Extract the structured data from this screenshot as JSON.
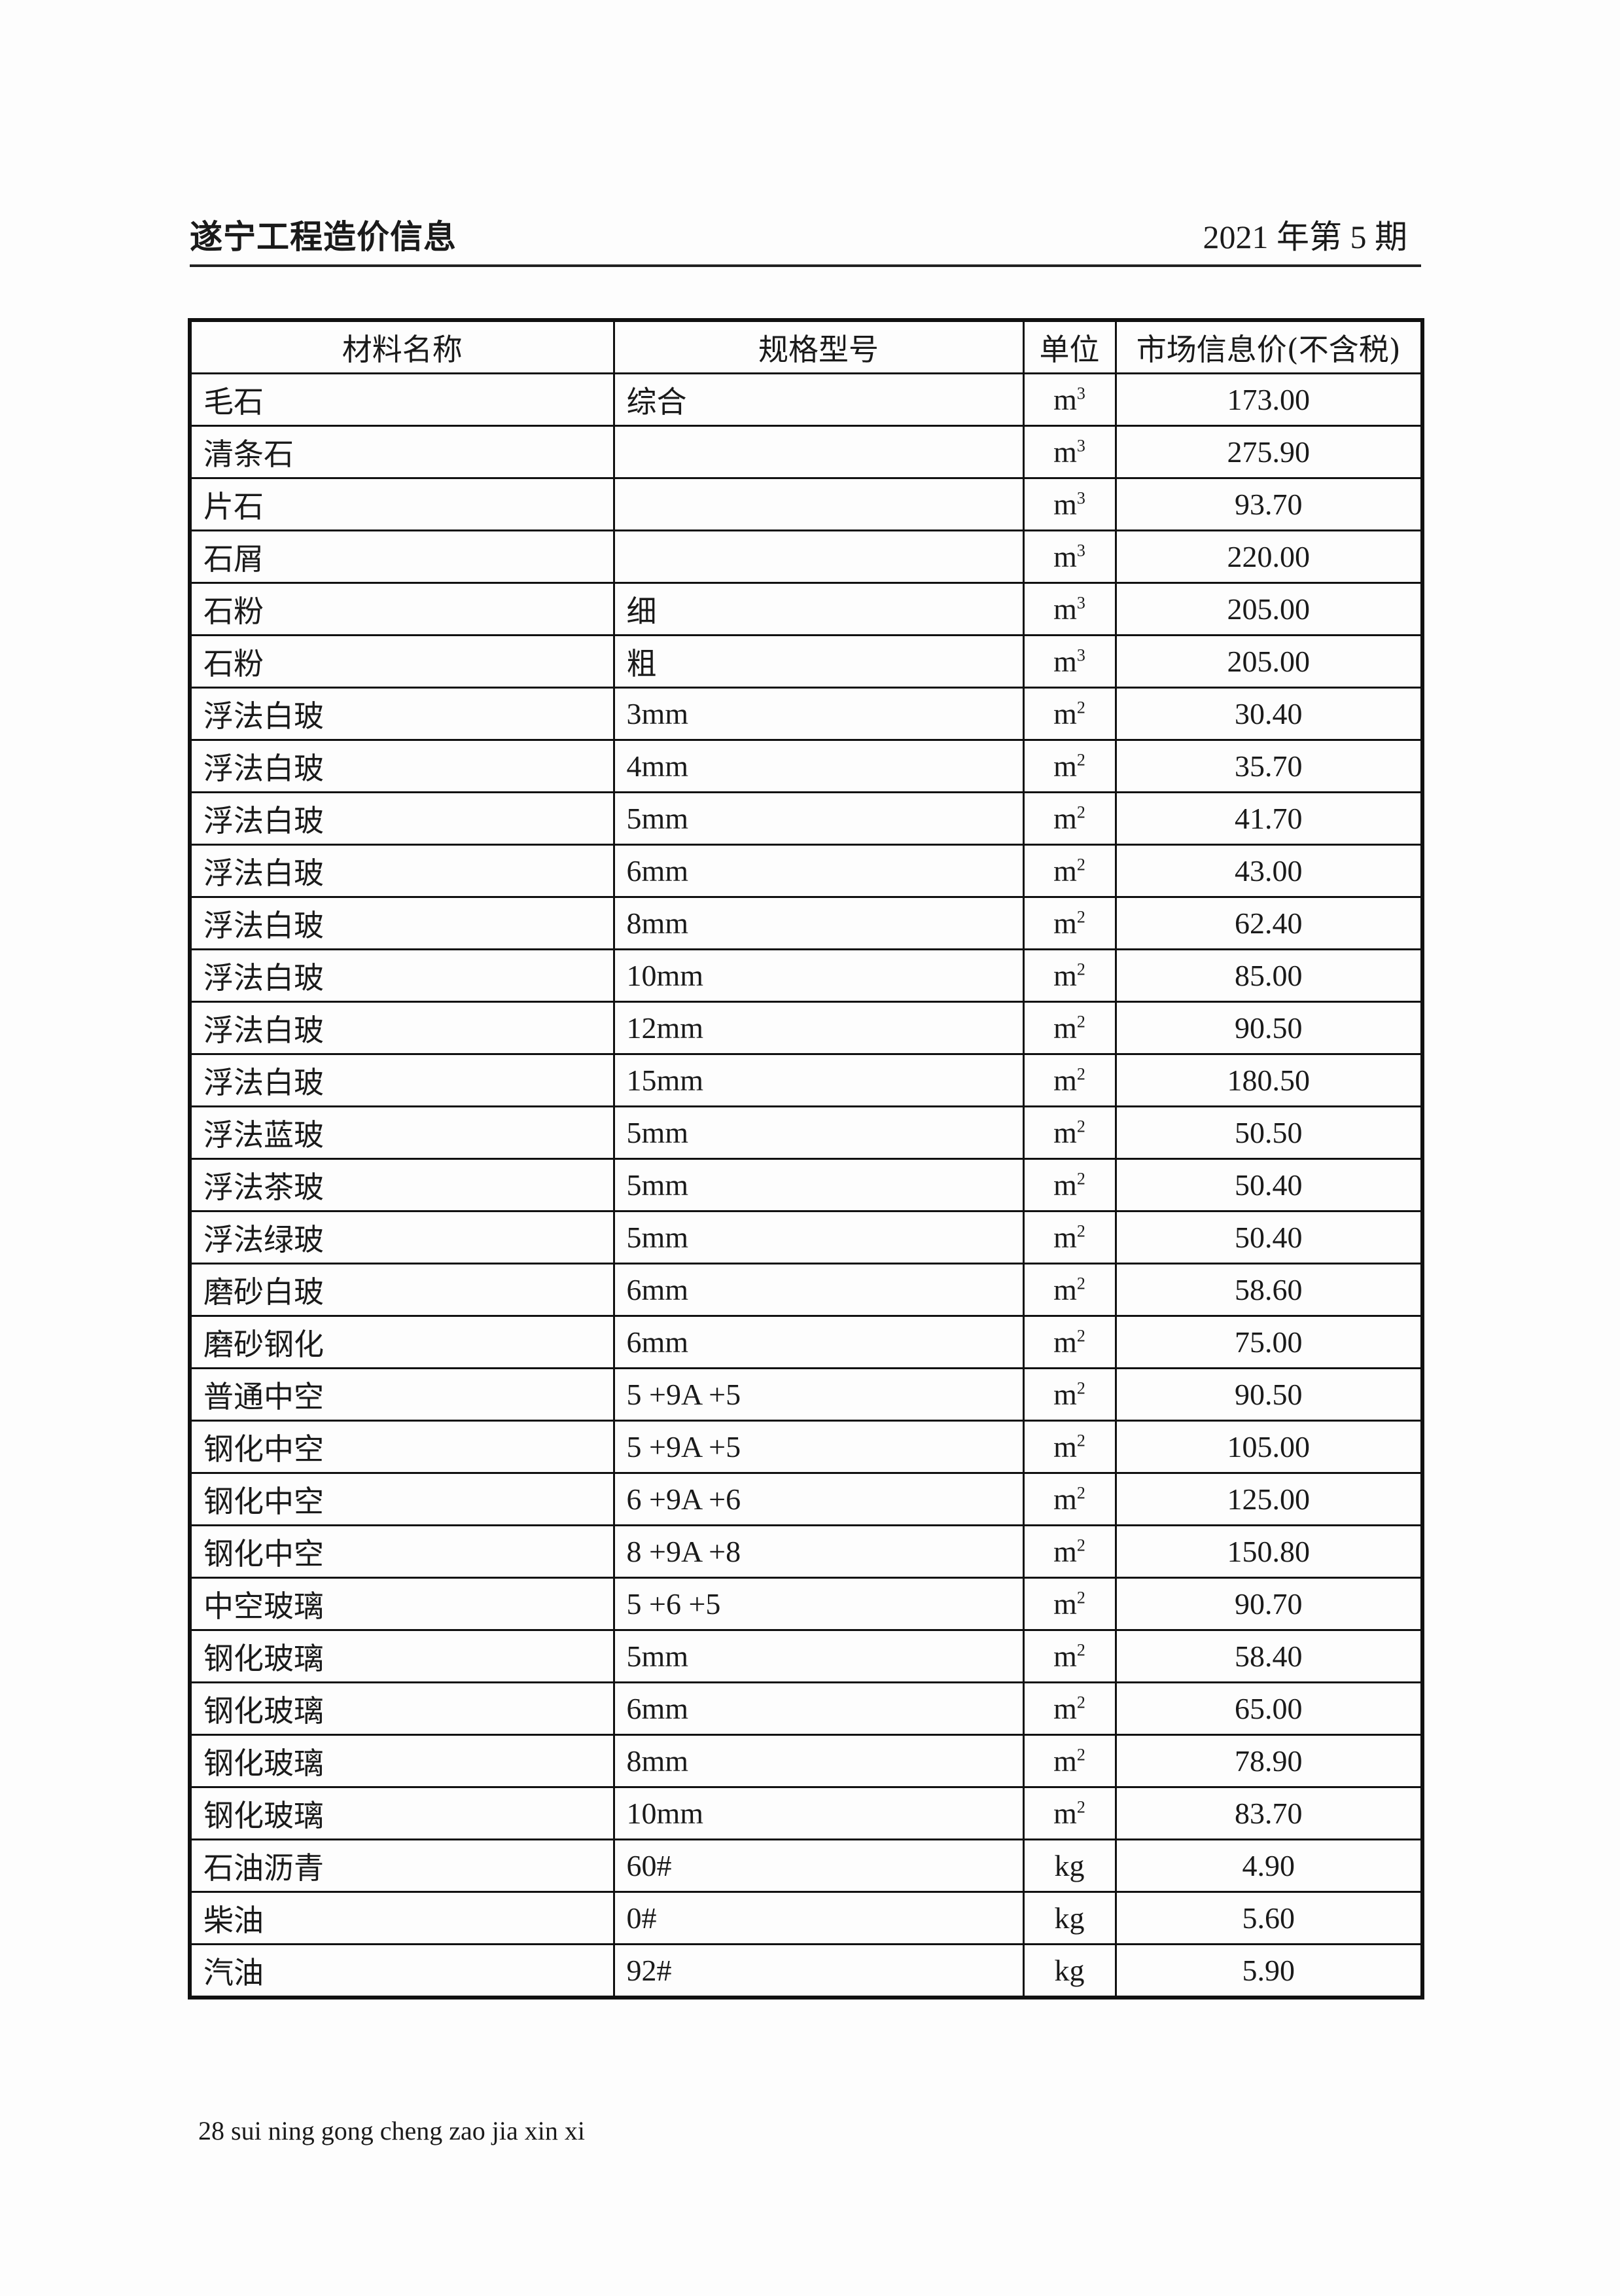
{
  "header": {
    "title": "遂宁工程造价信息",
    "issue": "2021 年第 5 期"
  },
  "table": {
    "columns": [
      "材料名称",
      "规格型号",
      "单位",
      "市场信息价(不含税)"
    ],
    "rows": [
      {
        "name": "毛石",
        "spec": "综合",
        "unit": "m",
        "unit_exp": "3",
        "price": "173.00"
      },
      {
        "name": "清条石",
        "spec": "",
        "unit": "m",
        "unit_exp": "3",
        "price": "275.90"
      },
      {
        "name": "片石",
        "spec": "",
        "unit": "m",
        "unit_exp": "3",
        "price": "93.70"
      },
      {
        "name": "石屑",
        "spec": "",
        "unit": "m",
        "unit_exp": "3",
        "price": "220.00"
      },
      {
        "name": "石粉",
        "spec": "细",
        "unit": "m",
        "unit_exp": "3",
        "price": "205.00"
      },
      {
        "name": "石粉",
        "spec": "粗",
        "unit": "m",
        "unit_exp": "3",
        "price": "205.00"
      },
      {
        "name": "浮法白玻",
        "spec": "3mm",
        "unit": "m",
        "unit_exp": "2",
        "price": "30.40"
      },
      {
        "name": "浮法白玻",
        "spec": "4mm",
        "unit": "m",
        "unit_exp": "2",
        "price": "35.70"
      },
      {
        "name": "浮法白玻",
        "spec": "5mm",
        "unit": "m",
        "unit_exp": "2",
        "price": "41.70"
      },
      {
        "name": "浮法白玻",
        "spec": "6mm",
        "unit": "m",
        "unit_exp": "2",
        "price": "43.00"
      },
      {
        "name": "浮法白玻",
        "spec": "8mm",
        "unit": "m",
        "unit_exp": "2",
        "price": "62.40"
      },
      {
        "name": "浮法白玻",
        "spec": "10mm",
        "unit": "m",
        "unit_exp": "2",
        "price": "85.00"
      },
      {
        "name": "浮法白玻",
        "spec": "12mm",
        "unit": "m",
        "unit_exp": "2",
        "price": "90.50"
      },
      {
        "name": "浮法白玻",
        "spec": "15mm",
        "unit": "m",
        "unit_exp": "2",
        "price": "180.50"
      },
      {
        "name": "浮法蓝玻",
        "spec": "5mm",
        "unit": "m",
        "unit_exp": "2",
        "price": "50.50"
      },
      {
        "name": "浮法茶玻",
        "spec": "5mm",
        "unit": "m",
        "unit_exp": "2",
        "price": "50.40"
      },
      {
        "name": "浮法绿玻",
        "spec": "5mm",
        "unit": "m",
        "unit_exp": "2",
        "price": "50.40"
      },
      {
        "name": "磨砂白玻",
        "spec": "6mm",
        "unit": "m",
        "unit_exp": "2",
        "price": "58.60"
      },
      {
        "name": "磨砂钢化",
        "spec": "6mm",
        "unit": "m",
        "unit_exp": "2",
        "price": "75.00"
      },
      {
        "name": "普通中空",
        "spec": "5 +9A +5",
        "unit": "m",
        "unit_exp": "2",
        "price": "90.50"
      },
      {
        "name": "钢化中空",
        "spec": "5 +9A +5",
        "unit": "m",
        "unit_exp": "2",
        "price": "105.00"
      },
      {
        "name": "钢化中空",
        "spec": "6 +9A +6",
        "unit": "m",
        "unit_exp": "2",
        "price": "125.00"
      },
      {
        "name": "钢化中空",
        "spec": "8 +9A +8",
        "unit": "m",
        "unit_exp": "2",
        "price": "150.80"
      },
      {
        "name": "中空玻璃",
        "spec": "5 +6 +5",
        "unit": "m",
        "unit_exp": "2",
        "price": "90.70"
      },
      {
        "name": "钢化玻璃",
        "spec": "5mm",
        "unit": "m",
        "unit_exp": "2",
        "price": "58.40"
      },
      {
        "name": "钢化玻璃",
        "spec": "6mm",
        "unit": "m",
        "unit_exp": "2",
        "price": "65.00"
      },
      {
        "name": "钢化玻璃",
        "spec": "8mm",
        "unit": "m",
        "unit_exp": "2",
        "price": "78.90"
      },
      {
        "name": "钢化玻璃",
        "spec": "10mm",
        "unit": "m",
        "unit_exp": "2",
        "price": "83.70"
      },
      {
        "name": "石油沥青",
        "spec": "60#",
        "unit": "kg",
        "unit_exp": "",
        "price": "4.90"
      },
      {
        "name": "柴油",
        "spec": "0#",
        "unit": "kg",
        "unit_exp": "",
        "price": "5.60"
      },
      {
        "name": "汽油",
        "spec": "92#",
        "unit": "kg",
        "unit_exp": "",
        "price": "5.90"
      }
    ]
  },
  "footer": {
    "text": "28 sui ning gong cheng zao jia xin xi"
  }
}
